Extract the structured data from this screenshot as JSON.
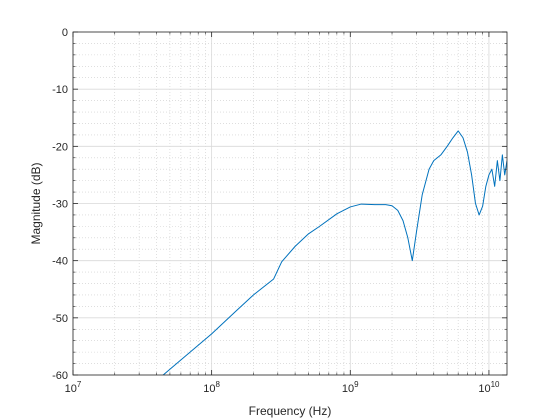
{
  "chart_data": {
    "type": "line",
    "title": "",
    "xlabel": "Frequency (Hz)",
    "ylabel": "Magnitude (dB)",
    "x_scale": "log",
    "xlim": [
      10000000,
      13500000000
    ],
    "ylim": [
      -60,
      0
    ],
    "grid": true,
    "minor_grid": true,
    "line_color": "#0072BD",
    "x_ticks": [
      {
        "base": "10",
        "exp": "7"
      },
      {
        "base": "10",
        "exp": "8"
      },
      {
        "base": "10",
        "exp": "9"
      },
      {
        "base": "10",
        "exp": "10"
      }
    ],
    "y_ticks": [
      "-60",
      "-50",
      "-40",
      "-30",
      "-20",
      "-10",
      "0"
    ],
    "series": [
      {
        "x": [
          40000000,
          50000000,
          80000000,
          100000000,
          150000000,
          200000000,
          280000000,
          320000000,
          400000000,
          500000000,
          600000000,
          800000000,
          1000000000,
          1200000000,
          1500000000,
          1800000000,
          2000000000,
          2200000000,
          2400000000,
          2600000000,
          2800000000,
          3000000000,
          3300000000,
          3700000000,
          4000000000,
          4500000000,
          5000000000,
          5500000000,
          6000000000,
          6500000000,
          7000000000,
          7500000000,
          8000000000,
          8500000000,
          9000000000,
          9500000000,
          10000000000,
          10500000000,
          11000000000,
          11500000000,
          12000000000,
          12500000000,
          13000000000,
          13500000000
        ],
        "y": [
          -61.0,
          -59.0,
          -54.8,
          -52.8,
          -48.8,
          -46.0,
          -43.2,
          -40.2,
          -37.5,
          -35.3,
          -34.0,
          -31.8,
          -30.6,
          -30.1,
          -30.2,
          -30.2,
          -30.4,
          -31.2,
          -33.0,
          -36.0,
          -40.0,
          -35.0,
          -28.5,
          -24.0,
          -22.5,
          -21.5,
          -20.0,
          -18.5,
          -17.3,
          -18.5,
          -21.0,
          -25.0,
          -30.0,
          -32.0,
          -30.5,
          -27.0,
          -25.0,
          -24.0,
          -27.0,
          -22.5,
          -26.0,
          -21.5,
          -25.0,
          -22.5
        ]
      }
    ]
  }
}
